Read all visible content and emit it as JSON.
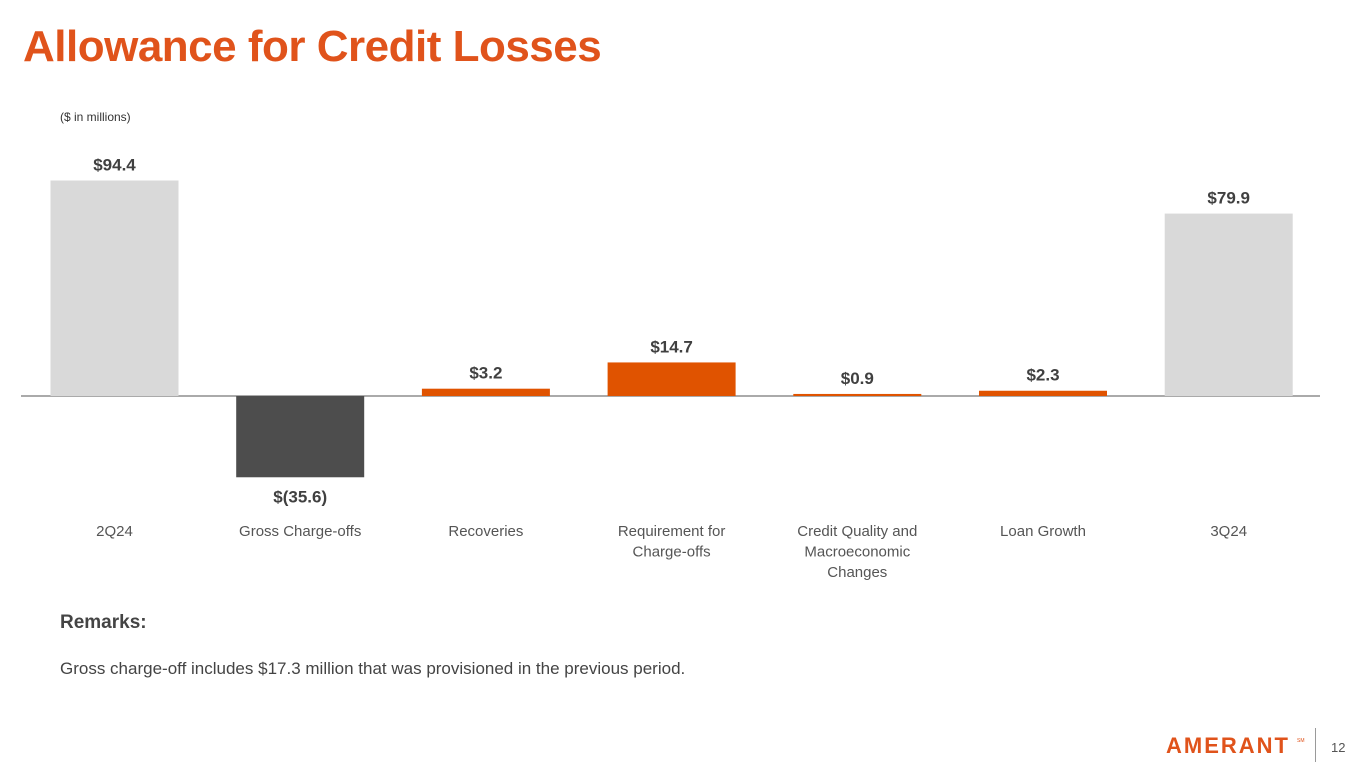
{
  "title": "Allowance for Credit Losses",
  "units_note": "($ in millions)",
  "remarks": {
    "heading": "Remarks:",
    "text": "Gross charge-off includes $17.3 million that was provisioned in the previous period."
  },
  "footer": {
    "logo_text": "AMERANT",
    "page_number": "12"
  },
  "colors": {
    "accent": "#e0531b",
    "endpoint": "#d9d9d9",
    "negative": "#4d4d4d",
    "positive": "#e05300",
    "axis": "#555555"
  },
  "chart_data": {
    "type": "bar",
    "subtype": "waterfall",
    "title": "Allowance for Credit Losses",
    "unit": "($ in millions)",
    "categories": [
      [
        "2Q24"
      ],
      [
        "Gross Charge-offs"
      ],
      [
        "Recoveries"
      ],
      [
        "Requirement for",
        "Charge-offs"
      ],
      [
        "Credit Quality and",
        "Macroeconomic",
        "Changes"
      ],
      [
        "Loan Growth"
      ],
      [
        "3Q24"
      ]
    ],
    "values": [
      94.4,
      -35.6,
      3.2,
      14.7,
      0.9,
      2.3,
      79.9
    ],
    "data_labels": [
      "$94.4",
      "$(35.6)",
      "$3.2",
      "$14.7",
      "$0.9",
      "$2.3",
      "$79.9"
    ],
    "bar_kinds": [
      "endpoint",
      "negative",
      "positive",
      "positive",
      "positive",
      "positive",
      "endpoint"
    ],
    "ylim": [
      -35.6,
      94.4
    ],
    "grid": false,
    "legend": "none"
  }
}
